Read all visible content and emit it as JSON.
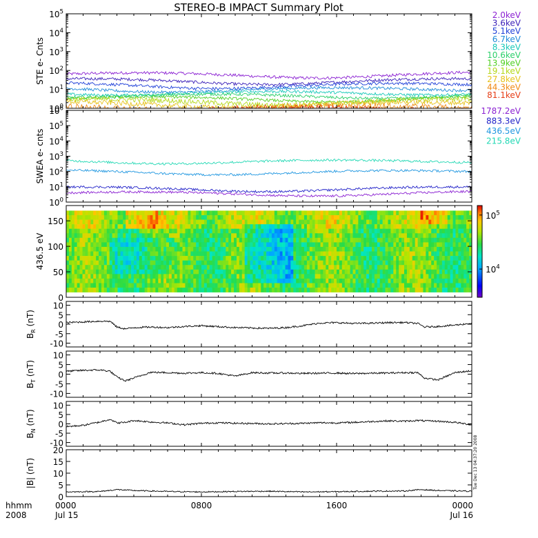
{
  "title": "STEREO-B IMPACT Summary Plot",
  "timestamp": "Tue Dec 13 04:37:20 2008",
  "time_axis": {
    "row1_label": "hhmm",
    "row2_label": "2008",
    "ticks": [
      {
        "hour": 0,
        "label": "0000",
        "sub": "Jul 15"
      },
      {
        "hour": 8,
        "label": "0800",
        "sub": ""
      },
      {
        "hour": 16,
        "label": "1600",
        "sub": ""
      },
      {
        "hour": 24,
        "label": "0000",
        "sub": "Jul 16"
      }
    ],
    "range": [
      0,
      24
    ]
  },
  "chart_data": [
    {
      "type": "line",
      "id": "ste",
      "ylabel": "STE e- Cnts",
      "yscale": "log",
      "ylim": [
        1,
        100000
      ],
      "yticks": [
        "10^0",
        "10^1",
        "10^2",
        "10^3",
        "10^4",
        "10^5"
      ],
      "series": [
        {
          "name": "2.0keV",
          "color": "#8a1fd2",
          "level": 65
        },
        {
          "name": "3.6keV",
          "color": "#3a1fb8",
          "level": 30
        },
        {
          "name": "5.1keV",
          "color": "#1e3fd8",
          "level": 18
        },
        {
          "name": "6.7keV",
          "color": "#1e8ad8",
          "level": 11
        },
        {
          "name": "8.3keV",
          "color": "#17c8b8",
          "level": 7
        },
        {
          "name": "10.6keV",
          "color": "#2bcf6a",
          "level": 5
        },
        {
          "name": "13.9keV",
          "color": "#4fcf22",
          "level": 3.5
        },
        {
          "name": "19.1keV",
          "color": "#b4d81a",
          "level": 2.5
        },
        {
          "name": "27.8keV",
          "color": "#e6c21a",
          "level": 1.8
        },
        {
          "name": "44.3keV",
          "color": "#f08a14",
          "level": 1.3
        },
        {
          "name": "81.1keV",
          "color": "#e63c14",
          "level": 1.05
        }
      ]
    },
    {
      "type": "line",
      "id": "swea",
      "ylabel": "SWEA e- cnts",
      "yscale": "log",
      "ylim": [
        1,
        1000000
      ],
      "yticks": [
        "10^0",
        "10^1",
        "10^2",
        "10^3",
        "10^4",
        "10^5",
        "10^6"
      ],
      "series": [
        {
          "name": "1787.2eV",
          "color": "#8a1fd2",
          "level": 4
        },
        {
          "name": "883.3eV",
          "color": "#2020c8",
          "level": 8
        },
        {
          "name": "436.5eV",
          "color": "#1e96e0",
          "level": 100
        },
        {
          "name": "215.8eV",
          "color": "#22d8b4",
          "level": 500
        }
      ]
    },
    {
      "type": "heatmap",
      "id": "pad",
      "ylabel": "436.5 eV",
      "ylim": [
        0,
        180
      ],
      "yticks": [
        "0",
        "50",
        "100",
        "150"
      ],
      "colorbar": {
        "ticks": [
          "10^5",
          "10^4"
        ],
        "range": [
          3000,
          150000
        ],
        "scale": "log"
      }
    },
    {
      "type": "line",
      "id": "br",
      "ylabel": "B_R (nT)",
      "ylim": [
        -12,
        12
      ],
      "yticks": [
        "-10",
        "-5",
        "0",
        "5",
        "10"
      ],
      "series": [
        {
          "name": "",
          "color": "#000000",
          "x": [
            0,
            1,
            2,
            2.6,
            3,
            3.5,
            4,
            5,
            6,
            7,
            8,
            9,
            10,
            11,
            12,
            13,
            14,
            15,
            16,
            17,
            18,
            19,
            20,
            20.8,
            21.2,
            22,
            23,
            24
          ],
          "values": [
            0.8,
            1.2,
            1.6,
            1.5,
            -1.5,
            -2.5,
            -1.8,
            -1.5,
            -1.8,
            -1.2,
            -0.8,
            -1.3,
            -1.8,
            -2.0,
            -2.2,
            -1.8,
            -0.8,
            0.6,
            0.8,
            0.4,
            0.5,
            0.8,
            0.9,
            0.4,
            -1.5,
            -1.2,
            -0.5,
            0.5
          ]
        }
      ]
    },
    {
      "type": "line",
      "id": "bt",
      "ylabel": "B_T (nT)",
      "ylim": [
        -12,
        12
      ],
      "yticks": [
        "-10",
        "-5",
        "0",
        "5",
        "10"
      ],
      "series": [
        {
          "name": "",
          "color": "#000000",
          "x": [
            0,
            1,
            2,
            2.6,
            3,
            3.5,
            4,
            5,
            6,
            7,
            8,
            9,
            10,
            11,
            12,
            13,
            14,
            15,
            16,
            17,
            18,
            19,
            20,
            20.8,
            21.2,
            22,
            23,
            24
          ],
          "values": [
            1.5,
            2.0,
            2.2,
            1.5,
            -1.5,
            -3.5,
            -2.0,
            1.0,
            0.8,
            0.5,
            0.8,
            0.4,
            -1.0,
            0.8,
            0.6,
            0.6,
            0.4,
            0.5,
            0.6,
            0.3,
            0.5,
            0.6,
            0.8,
            0.8,
            -2.0,
            -3.0,
            0.8,
            1.8
          ]
        }
      ]
    },
    {
      "type": "line",
      "id": "bn",
      "ylabel": "B_N (nT)",
      "ylim": [
        -12,
        12
      ],
      "yticks": [
        "-10",
        "-5",
        "0",
        "5",
        "10"
      ],
      "series": [
        {
          "name": "",
          "color": "#000000",
          "x": [
            0,
            1,
            2,
            2.6,
            3,
            3.5,
            4,
            5,
            6,
            7,
            8,
            9,
            10,
            11,
            12,
            13,
            14,
            15,
            16,
            17,
            18,
            19,
            20,
            20.8,
            21.2,
            22,
            23,
            24
          ],
          "values": [
            -1.5,
            -0.8,
            1.0,
            2.5,
            0.5,
            0.8,
            1.8,
            1.0,
            0.5,
            -0.5,
            0.3,
            0.6,
            0.3,
            0.2,
            0.0,
            0.1,
            0.3,
            0.6,
            0.5,
            0.8,
            1.2,
            1.6,
            1.4,
            1.8,
            1.6,
            1.4,
            0.8,
            -0.5
          ]
        }
      ]
    },
    {
      "type": "line",
      "id": "bmag",
      "ylabel": "|B| (nT)",
      "ylim": [
        0,
        20
      ],
      "yticks": [
        "0",
        "5",
        "10",
        "15",
        "20"
      ],
      "series": [
        {
          "name": "",
          "color": "#000000",
          "x": [
            0,
            2,
            3,
            4,
            6,
            8,
            10,
            12,
            14,
            16,
            18,
            20,
            21,
            22,
            24
          ],
          "values": [
            2.0,
            2.2,
            3.0,
            2.6,
            2.2,
            2.0,
            2.2,
            2.3,
            2.0,
            2.1,
            2.3,
            2.4,
            3.0,
            2.6,
            2.3
          ]
        }
      ]
    }
  ]
}
